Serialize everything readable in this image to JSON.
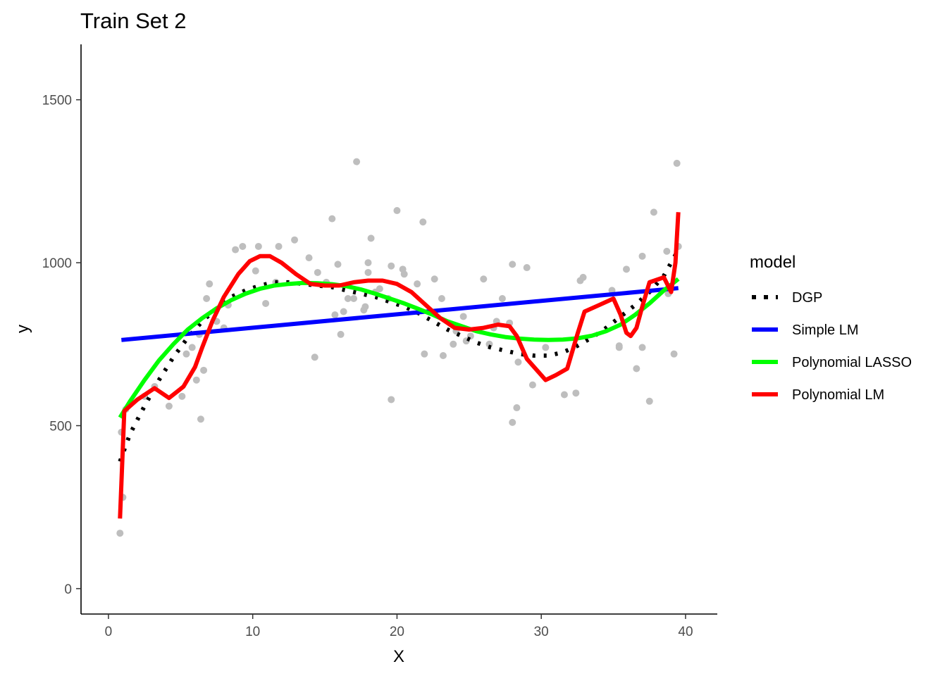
{
  "chart_data": {
    "type": "scatter",
    "title": "Train Set 2",
    "xlabel": "X",
    "ylabel": "y",
    "xlim": [
      -1.9,
      42.2
    ],
    "ylim": [
      -78,
      1670
    ],
    "x_ticks": [
      0,
      10,
      20,
      30,
      40
    ],
    "y_ticks": [
      0,
      500,
      1000,
      1500
    ],
    "grid": false,
    "legend": {
      "title": "model",
      "placement": "right",
      "entries": [
        {
          "label": "DGP",
          "color": "#000000",
          "dash": "dotted"
        },
        {
          "label": "Simple LM",
          "color": "#0000FF",
          "dash": "solid"
        },
        {
          "label": "Polynomial LASSO",
          "color": "#00FF00",
          "dash": "solid"
        },
        {
          "label": "Polynomial LM",
          "color": "#FF0000",
          "dash": "solid"
        }
      ]
    },
    "points_color": "#BEBEBE",
    "points": [
      [
        0.8,
        170
      ],
      [
        0.9,
        480
      ],
      [
        1.0,
        280
      ],
      [
        1.2,
        550
      ],
      [
        2.5,
        590
      ],
      [
        3.2,
        620
      ],
      [
        4.2,
        560
      ],
      [
        5.1,
        590
      ],
      [
        5.4,
        720
      ],
      [
        5.8,
        740
      ],
      [
        6.1,
        640
      ],
      [
        6.3,
        780
      ],
      [
        6.4,
        520
      ],
      [
        6.6,
        670
      ],
      [
        6.8,
        890
      ],
      [
        7.0,
        935
      ],
      [
        7.5,
        820
      ],
      [
        8.0,
        800
      ],
      [
        8.3,
        870
      ],
      [
        8.8,
        1040
      ],
      [
        9.3,
        1050
      ],
      [
        10.2,
        975
      ],
      [
        10.4,
        1050
      ],
      [
        10.9,
        875
      ],
      [
        11.6,
        940
      ],
      [
        11.8,
        1050
      ],
      [
        12.9,
        1070
      ],
      [
        13.9,
        1015
      ],
      [
        14.3,
        710
      ],
      [
        14.5,
        970
      ],
      [
        15.1,
        940
      ],
      [
        15.5,
        1135
      ],
      [
        15.7,
        840
      ],
      [
        15.9,
        995
      ],
      [
        16.1,
        780
      ],
      [
        16.3,
        850
      ],
      [
        16.6,
        890
      ],
      [
        17.0,
        890
      ],
      [
        17.2,
        1310
      ],
      [
        17.7,
        855
      ],
      [
        17.8,
        865
      ],
      [
        18.0,
        1000
      ],
      [
        18.0,
        970
      ],
      [
        18.2,
        1075
      ],
      [
        18.5,
        910
      ],
      [
        18.8,
        920
      ],
      [
        19.4,
        890
      ],
      [
        19.6,
        990
      ],
      [
        19.6,
        580
      ],
      [
        20.0,
        1160
      ],
      [
        20.4,
        980
      ],
      [
        20.5,
        965
      ],
      [
        21.4,
        935
      ],
      [
        21.8,
        1125
      ],
      [
        21.9,
        720
      ],
      [
        22.6,
        950
      ],
      [
        23.1,
        890
      ],
      [
        23.2,
        715
      ],
      [
        23.9,
        750
      ],
      [
        24.1,
        790
      ],
      [
        24.6,
        835
      ],
      [
        24.8,
        760
      ],
      [
        25.1,
        775
      ],
      [
        26.0,
        950
      ],
      [
        26.4,
        750
      ],
      [
        26.7,
        800
      ],
      [
        26.9,
        820
      ],
      [
        27.3,
        890
      ],
      [
        27.8,
        815
      ],
      [
        28.0,
        510
      ],
      [
        28.0,
        995
      ],
      [
        28.3,
        555
      ],
      [
        28.4,
        695
      ],
      [
        29.0,
        985
      ],
      [
        29.4,
        625
      ],
      [
        30.3,
        740
      ],
      [
        31.6,
        595
      ],
      [
        32.4,
        600
      ],
      [
        32.7,
        945
      ],
      [
        32.9,
        955
      ],
      [
        34.9,
        915
      ],
      [
        35.4,
        740
      ],
      [
        35.4,
        745
      ],
      [
        35.9,
        980
      ],
      [
        36.6,
        675
      ],
      [
        37.0,
        1020
      ],
      [
        37.0,
        740
      ],
      [
        37.5,
        575
      ],
      [
        37.8,
        1155
      ],
      [
        38.7,
        1035
      ],
      [
        38.8,
        905
      ],
      [
        39.2,
        720
      ],
      [
        39.4,
        1305
      ],
      [
        39.5,
        1050
      ]
    ],
    "series": [
      {
        "name": "DGP",
        "color": "#000000",
        "dash": "dotted",
        "x": [
          0.8,
          1.5,
          2.5,
          3.5,
          4.5,
          5.5,
          6.5,
          7.5,
          8.5,
          9.5,
          10.5,
          11.5,
          12.5,
          13.5,
          14.5,
          15.5,
          16.5,
          17.5,
          18.5,
          19.5,
          20.5,
          21.5,
          22.5,
          23.5,
          24.5,
          25.5,
          26.5,
          27.5,
          28.5,
          29.5,
          30.5,
          31.5,
          32.5,
          33.5,
          34.5,
          35.5,
          36.5,
          37.5,
          38.5,
          39.5
        ],
        "y": [
          390,
          475,
          560,
          640,
          710,
          770,
          820,
          860,
          895,
          915,
          930,
          940,
          940,
          935,
          930,
          925,
          915,
          905,
          895,
          880,
          865,
          845,
          820,
          795,
          775,
          755,
          740,
          730,
          720,
          715,
          715,
          725,
          745,
          770,
          800,
          835,
          870,
          910,
          960,
          1040
        ]
      },
      {
        "name": "Simple LM",
        "color": "#0000FF",
        "dash": "solid",
        "x": [
          0.9,
          39.5
        ],
        "y": [
          763,
          922
        ]
      },
      {
        "name": "Polynomial LASSO",
        "color": "#00FF00",
        "dash": "solid",
        "x": [
          0.8,
          1.5,
          2.5,
          3.5,
          4.5,
          5.5,
          6.5,
          7.5,
          8.5,
          9.5,
          10.5,
          11.5,
          12.5,
          13.5,
          14.5,
          15.5,
          16.5,
          17.5,
          18.5,
          19.5,
          20.5,
          21.5,
          22.5,
          23.5,
          24.5,
          25.5,
          26.5,
          27.5,
          28.5,
          29.5,
          30.5,
          31.5,
          32.5,
          33.5,
          34.5,
          35.5,
          36.5,
          37.5,
          38.5,
          39.5
        ],
        "y": [
          525,
          575,
          640,
          700,
          750,
          795,
          830,
          860,
          885,
          905,
          920,
          930,
          935,
          938,
          937,
          934,
          928,
          918,
          905,
          890,
          875,
          858,
          840,
          820,
          805,
          790,
          780,
          772,
          767,
          764,
          763,
          764,
          768,
          776,
          790,
          810,
          840,
          875,
          915,
          950
        ]
      },
      {
        "name": "Polynomial LM",
        "color": "#FF0000",
        "dash": "solid",
        "x": [
          0.8,
          1.1,
          2.0,
          3.2,
          4.2,
          5.2,
          6.0,
          6.5,
          7.2,
          8.0,
          9.0,
          9.8,
          10.5,
          11.2,
          12.0,
          13.0,
          14.0,
          15.0,
          16.0,
          17.0,
          18.0,
          19.0,
          20.0,
          21.0,
          22.0,
          23.0,
          24.0,
          25.0,
          26.0,
          27.0,
          27.8,
          28.3,
          29.0,
          29.8,
          30.3,
          31.0,
          31.8,
          32.5,
          33.0,
          34.0,
          35.0,
          35.5,
          35.9,
          36.2,
          36.6,
          37.0,
          37.5,
          38.5,
          39.0,
          39.3,
          39.5
        ],
        "y": [
          215,
          545,
          580,
          615,
          585,
          620,
          680,
          740,
          820,
          895,
          965,
          1005,
          1020,
          1020,
          1000,
          965,
          935,
          930,
          930,
          940,
          945,
          945,
          935,
          910,
          870,
          830,
          800,
          795,
          800,
          810,
          805,
          775,
          705,
          665,
          640,
          655,
          675,
          780,
          850,
          870,
          890,
          840,
          785,
          775,
          800,
          865,
          940,
          955,
          910,
          1000,
          1155
        ]
      }
    ]
  }
}
